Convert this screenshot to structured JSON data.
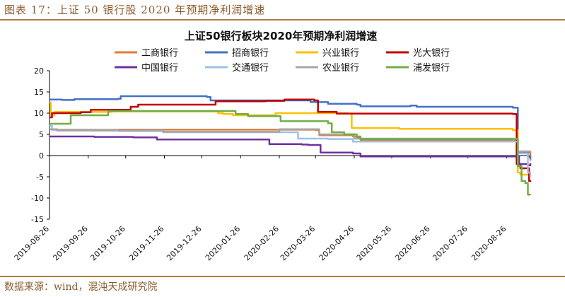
{
  "header": {
    "caption": "图表 17：上证 50 银行股 2020 年预期净利润增速"
  },
  "footer": {
    "source": "数据来源：wind，混沌天成研究院"
  },
  "colors": {
    "accent_rule": "#b07a3c",
    "caption_text": "#8a5a2b"
  },
  "chart_data": {
    "type": "line",
    "title": "上证50银行板块2020年预期净利润增速",
    "xlabel": "",
    "ylabel": "",
    "x_range": [
      "2019-08-26",
      "2020-09-14"
    ],
    "ylim": [
      -15,
      20
    ],
    "yticks": [
      -15,
      -10,
      -5,
      0,
      5,
      10,
      15,
      20
    ],
    "xticks": [
      "2019-08-26",
      "2019-09-26",
      "2019-10-26",
      "2019-11-26",
      "2019-12-26",
      "2020-01-26",
      "2020-02-26",
      "2020-03-26",
      "2020-04-26",
      "2020-05-26",
      "2020-06-26",
      "2020-07-26",
      "2020-08-26"
    ],
    "grid": false,
    "legend_position": "top",
    "series": [
      {
        "name": "工商银行",
        "color": "#e07b39",
        "points": [
          [
            "2019-08-26",
            6.2
          ],
          [
            "2019-09-01",
            6.1
          ],
          [
            "2019-10-10",
            6.1
          ],
          [
            "2020-03-26",
            6.0
          ],
          [
            "2020-03-29",
            4.8
          ],
          [
            "2020-04-25",
            4.5
          ],
          [
            "2020-05-01",
            3.7
          ],
          [
            "2020-08-28",
            3.6
          ],
          [
            "2020-09-04",
            0.8
          ],
          [
            "2020-09-12",
            0.7
          ],
          [
            "2020-09-14",
            -1.2
          ]
        ]
      },
      {
        "name": "招商银行",
        "color": "#4472c4",
        "points": [
          [
            "2019-08-26",
            13.2
          ],
          [
            "2019-09-05",
            13.1
          ],
          [
            "2019-09-15",
            13.3
          ],
          [
            "2019-10-20",
            13.4
          ],
          [
            "2019-10-22",
            14.0
          ],
          [
            "2019-12-30",
            13.8
          ],
          [
            "2020-01-02",
            13.0
          ],
          [
            "2020-03-22",
            12.6
          ],
          [
            "2020-04-05",
            12.2
          ],
          [
            "2020-04-28",
            12.0
          ],
          [
            "2020-05-01",
            11.6
          ],
          [
            "2020-06-10",
            11.8
          ],
          [
            "2020-06-15",
            11.5
          ],
          [
            "2020-08-31",
            11.3
          ],
          [
            "2020-09-04",
            0.8
          ],
          [
            "2020-09-12",
            -0.3
          ],
          [
            "2020-09-14",
            -0.8
          ]
        ]
      },
      {
        "name": "兴业银行",
        "color": "#ffc000",
        "points": [
          [
            "2019-08-26",
            12.5
          ],
          [
            "2019-08-27",
            9.5
          ],
          [
            "2019-08-30",
            10.3
          ],
          [
            "2019-10-15",
            10.4
          ],
          [
            "2020-01-08",
            10.0
          ],
          [
            "2020-01-12",
            9.8
          ],
          [
            "2020-01-20",
            9.5
          ],
          [
            "2020-02-20",
            9.5
          ],
          [
            "2020-02-23",
            10.0
          ],
          [
            "2020-04-21",
            9.9
          ],
          [
            "2020-04-24",
            6.5
          ],
          [
            "2020-06-01",
            6.3
          ],
          [
            "2020-08-31",
            6.0
          ],
          [
            "2020-09-04",
            -4.0
          ],
          [
            "2020-09-06",
            -4.5
          ],
          [
            "2020-09-14",
            -4.8
          ]
        ]
      },
      {
        "name": "光大银行",
        "color": "#c00000",
        "points": [
          [
            "2019-08-26",
            9.0
          ],
          [
            "2019-08-28",
            10.0
          ],
          [
            "2019-09-20",
            10.2
          ],
          [
            "2019-09-28",
            10.8
          ],
          [
            "2019-10-28",
            10.8
          ],
          [
            "2019-10-30",
            11.5
          ],
          [
            "2019-11-05",
            12.0
          ],
          [
            "2020-01-04",
            12.0
          ],
          [
            "2020-01-06",
            12.8
          ],
          [
            "2020-02-15",
            12.9
          ],
          [
            "2020-03-01",
            13.2
          ],
          [
            "2020-03-25",
            13.0
          ],
          [
            "2020-03-28",
            10.3
          ],
          [
            "2020-04-10",
            10.3
          ],
          [
            "2020-04-12",
            9.9
          ],
          [
            "2020-08-31",
            9.8
          ],
          [
            "2020-09-03",
            -2.0
          ],
          [
            "2020-09-06",
            -3.0
          ],
          [
            "2020-09-12",
            -3.0
          ],
          [
            "2020-09-13",
            -6.0
          ],
          [
            "2020-09-14",
            -6.2
          ]
        ]
      },
      {
        "name": "中国银行",
        "color": "#7030a0",
        "points": [
          [
            "2019-08-26",
            4.5
          ],
          [
            "2019-10-01",
            4.4
          ],
          [
            "2019-11-01",
            4.3
          ],
          [
            "2019-11-20",
            3.8
          ],
          [
            "2020-02-15",
            3.8
          ],
          [
            "2020-02-18",
            2.7
          ],
          [
            "2020-03-15",
            2.6
          ],
          [
            "2020-03-20",
            2.5
          ],
          [
            "2020-03-30",
            0.7
          ],
          [
            "2020-04-20",
            0.7
          ],
          [
            "2020-04-25",
            0.5
          ],
          [
            "2020-05-01",
            -0.2
          ],
          [
            "2020-08-31",
            -0.2
          ],
          [
            "2020-09-05",
            -2.0
          ],
          [
            "2020-09-12",
            -2.3
          ],
          [
            "2020-09-14",
            -1.8
          ]
        ]
      },
      {
        "name": "交通银行",
        "color": "#9dc3e6",
        "points": [
          [
            "2019-08-26",
            7.0
          ],
          [
            "2019-08-28",
            6.0
          ],
          [
            "2019-10-20",
            5.8
          ],
          [
            "2019-11-25",
            5.5
          ],
          [
            "2020-03-10",
            5.5
          ],
          [
            "2020-03-12",
            4.0
          ],
          [
            "2020-04-05",
            3.9
          ],
          [
            "2020-04-25",
            3.3
          ],
          [
            "2020-08-31",
            3.3
          ],
          [
            "2020-09-04",
            0.5
          ],
          [
            "2020-09-12",
            -4.0
          ],
          [
            "2020-09-14",
            -5.0
          ]
        ]
      },
      {
        "name": "农业银行",
        "color": "#a5a5a5",
        "points": [
          [
            "2019-08-26",
            6.2
          ],
          [
            "2019-09-01",
            5.9
          ],
          [
            "2019-10-20",
            5.9
          ],
          [
            "2019-11-25",
            5.6
          ],
          [
            "2020-02-24",
            5.6
          ],
          [
            "2020-02-26",
            6.2
          ],
          [
            "2020-03-26",
            6.2
          ],
          [
            "2020-03-29",
            5.0
          ],
          [
            "2020-04-23",
            5.0
          ],
          [
            "2020-04-26",
            4.0
          ],
          [
            "2020-08-31",
            3.9
          ],
          [
            "2020-09-04",
            1.0
          ],
          [
            "2020-09-14",
            0.8
          ]
        ]
      },
      {
        "name": "浦发银行",
        "color": "#70ad47",
        "points": [
          [
            "2019-08-26",
            7.5
          ],
          [
            "2019-09-10",
            7.5
          ],
          [
            "2019-09-12",
            9.5
          ],
          [
            "2019-10-10",
            9.5
          ],
          [
            "2019-10-12",
            10.5
          ],
          [
            "2020-01-18",
            10.5
          ],
          [
            "2020-01-22",
            9.8
          ],
          [
            "2020-02-01",
            9.3
          ],
          [
            "2020-02-25",
            9.3
          ],
          [
            "2020-02-27",
            8.1
          ],
          [
            "2020-04-05",
            7.6
          ],
          [
            "2020-04-08",
            5.5
          ],
          [
            "2020-04-18",
            5.0
          ],
          [
            "2020-04-28",
            4.3
          ],
          [
            "2020-05-01",
            3.9
          ],
          [
            "2020-08-31",
            3.9
          ],
          [
            "2020-09-04",
            -2.5
          ],
          [
            "2020-09-07",
            -6.0
          ],
          [
            "2020-09-10",
            -6.5
          ],
          [
            "2020-09-12",
            -9.2
          ],
          [
            "2020-09-14",
            -9.3
          ]
        ]
      }
    ]
  }
}
